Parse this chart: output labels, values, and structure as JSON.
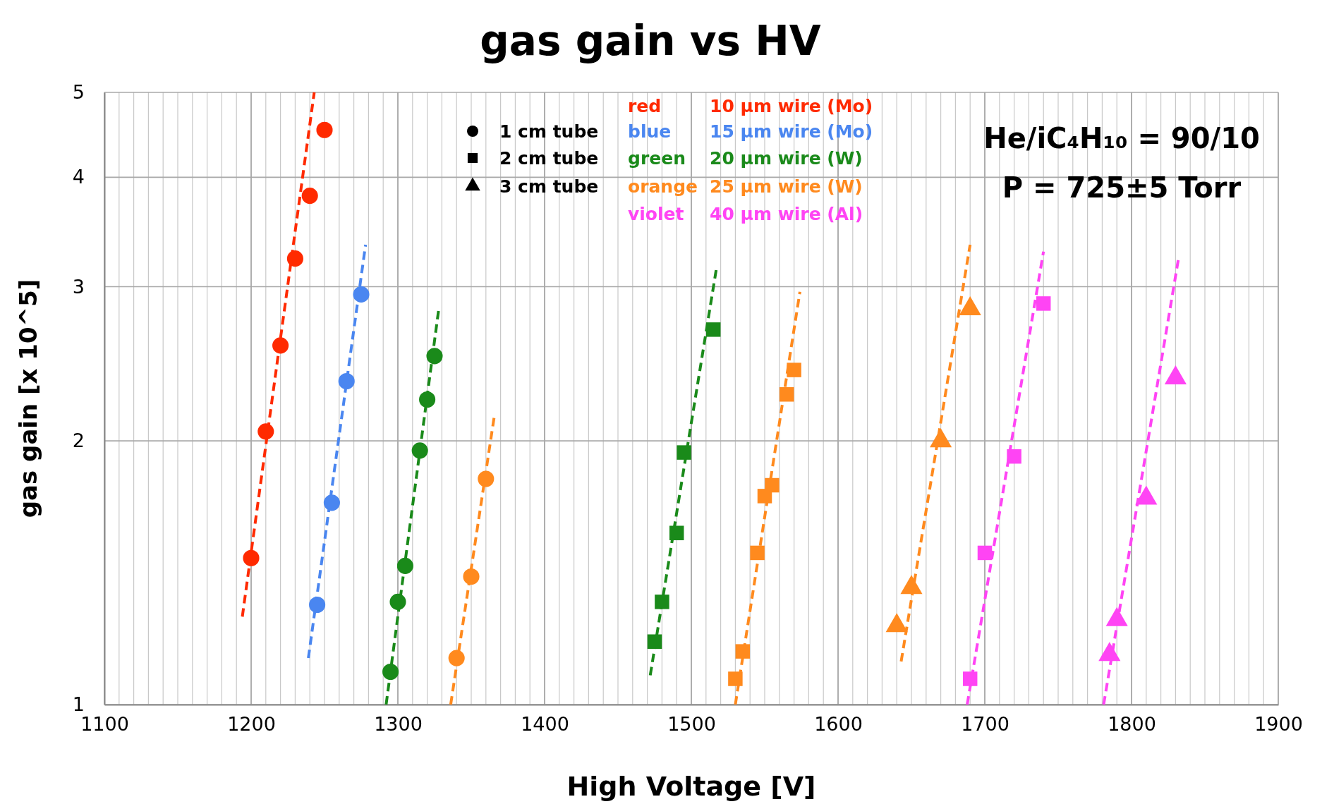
{
  "chart_data": {
    "type": "scatter",
    "title": "gas gain vs HV",
    "xlabel": "High Voltage [V]",
    "ylabel": "gas gain  [x 10^5]",
    "log": "y",
    "grid": true,
    "xlim": [
      1100,
      1900
    ],
    "xticks": [
      1100,
      1200,
      1300,
      1400,
      1500,
      1600,
      1700,
      1800,
      1900
    ],
    "ylim": [
      1,
      5
    ],
    "yticks": [
      1,
      2,
      3,
      4,
      5
    ],
    "series": [
      {
        "type": "scatter",
        "marker": "circle",
        "color": "#ff2a00",
        "x": [
          1200,
          1210,
          1220,
          1230,
          1240,
          1250
        ],
        "values": [
          1.47,
          2.05,
          2.57,
          3.23,
          3.81,
          4.53
        ]
      },
      {
        "type": "scatter",
        "marker": "circle",
        "color": "#4a86f0",
        "x": [
          1245,
          1255,
          1265,
          1275
        ],
        "values": [
          1.3,
          1.7,
          2.34,
          2.94
        ]
      },
      {
        "type": "scatter",
        "marker": "circle",
        "color": "#1a8a1a",
        "x": [
          1295,
          1300,
          1305,
          1315,
          1320,
          1325
        ],
        "values": [
          1.09,
          1.31,
          1.44,
          1.95,
          2.23,
          2.5
        ]
      },
      {
        "type": "scatter",
        "marker": "circle",
        "color": "#ff8a1e",
        "x": [
          1340,
          1350,
          1360
        ],
        "values": [
          1.13,
          1.4,
          1.81
        ]
      },
      {
        "type": "scatter",
        "marker": "square",
        "color": "#1a8a1a",
        "x": [
          1475,
          1480,
          1490,
          1495,
          1515
        ],
        "values": [
          1.18,
          1.31,
          1.57,
          1.94,
          2.68
        ]
      },
      {
        "type": "scatter",
        "marker": "square",
        "color": "#ff8a1e",
        "x": [
          1530,
          1535,
          1545,
          1550,
          1555,
          1565,
          1570
        ],
        "values": [
          1.07,
          1.15,
          1.49,
          1.73,
          1.78,
          2.26,
          2.41
        ]
      },
      {
        "type": "scatter",
        "marker": "triangle",
        "color": "#ff8a1e",
        "x": [
          1640,
          1650,
          1670,
          1690
        ],
        "values": [
          1.23,
          1.36,
          2.0,
          2.83
        ]
      },
      {
        "type": "scatter",
        "marker": "square",
        "color": "#ff44f4",
        "x": [
          1690,
          1700,
          1720,
          1740
        ],
        "values": [
          1.07,
          1.49,
          1.92,
          2.87
        ]
      },
      {
        "type": "scatter",
        "marker": "triangle",
        "color": "#ff44f4",
        "x": [
          1785,
          1790,
          1810,
          1830
        ],
        "values": [
          1.14,
          1.25,
          1.72,
          2.36
        ]
      },
      {
        "type": "line",
        "marker": "none",
        "line_style": "dashed",
        "color": "#ff2a00",
        "x": [
          1194,
          1243
        ],
        "values": [
          1.26,
          5
        ]
      },
      {
        "type": "line",
        "marker": "none",
        "line_style": "dashed",
        "color": "#4a86f0",
        "x": [
          1239,
          1278
        ],
        "values": [
          1.13,
          3.35
        ]
      },
      {
        "type": "line",
        "marker": "none",
        "line_style": "dashed",
        "color": "#1a8a1a",
        "x": [
          1292,
          1328
        ],
        "values": [
          1,
          2.84
        ]
      },
      {
        "type": "line",
        "marker": "none",
        "line_style": "dashed",
        "color": "#ff8a1e",
        "x": [
          1336,
          1366
        ],
        "values": [
          1,
          2.15
        ]
      },
      {
        "type": "line",
        "marker": "none",
        "line_style": "dashed",
        "color": "#1a8a1a",
        "x": [
          1472,
          1517
        ],
        "values": [
          1.08,
          3.14
        ]
      },
      {
        "type": "line",
        "marker": "none",
        "line_style": "dashed",
        "color": "#ff8a1e",
        "x": [
          1530,
          1574
        ],
        "values": [
          1,
          2.96
        ]
      },
      {
        "type": "line",
        "marker": "none",
        "line_style": "dashed",
        "color": "#ff8a1e",
        "x": [
          1643,
          1690
        ],
        "values": [
          1.12,
          3.35
        ]
      },
      {
        "type": "line",
        "marker": "none",
        "line_style": "dashed",
        "color": "#ff44f4",
        "x": [
          1688,
          1740
        ],
        "values": [
          1,
          3.29
        ]
      },
      {
        "type": "line",
        "marker": "none",
        "line_style": "dashed",
        "color": "#ff44f4",
        "x": [
          1781,
          1832
        ],
        "values": [
          1,
          3.23
        ]
      }
    ],
    "annotations": [
      "1 cm tube",
      "2 cm tube",
      "3 cm tube",
      "red",
      "10 µm wire (Mo)",
      "blue",
      "15 µm wire (Mo)",
      "green",
      "20 µm wire (W)",
      "orange",
      "25 µm wire (W)",
      "violet",
      "40 µm wire (Al)",
      "He/iC₄H₁₀ = 90/10",
      "P = 725±5 Torr"
    ]
  }
}
